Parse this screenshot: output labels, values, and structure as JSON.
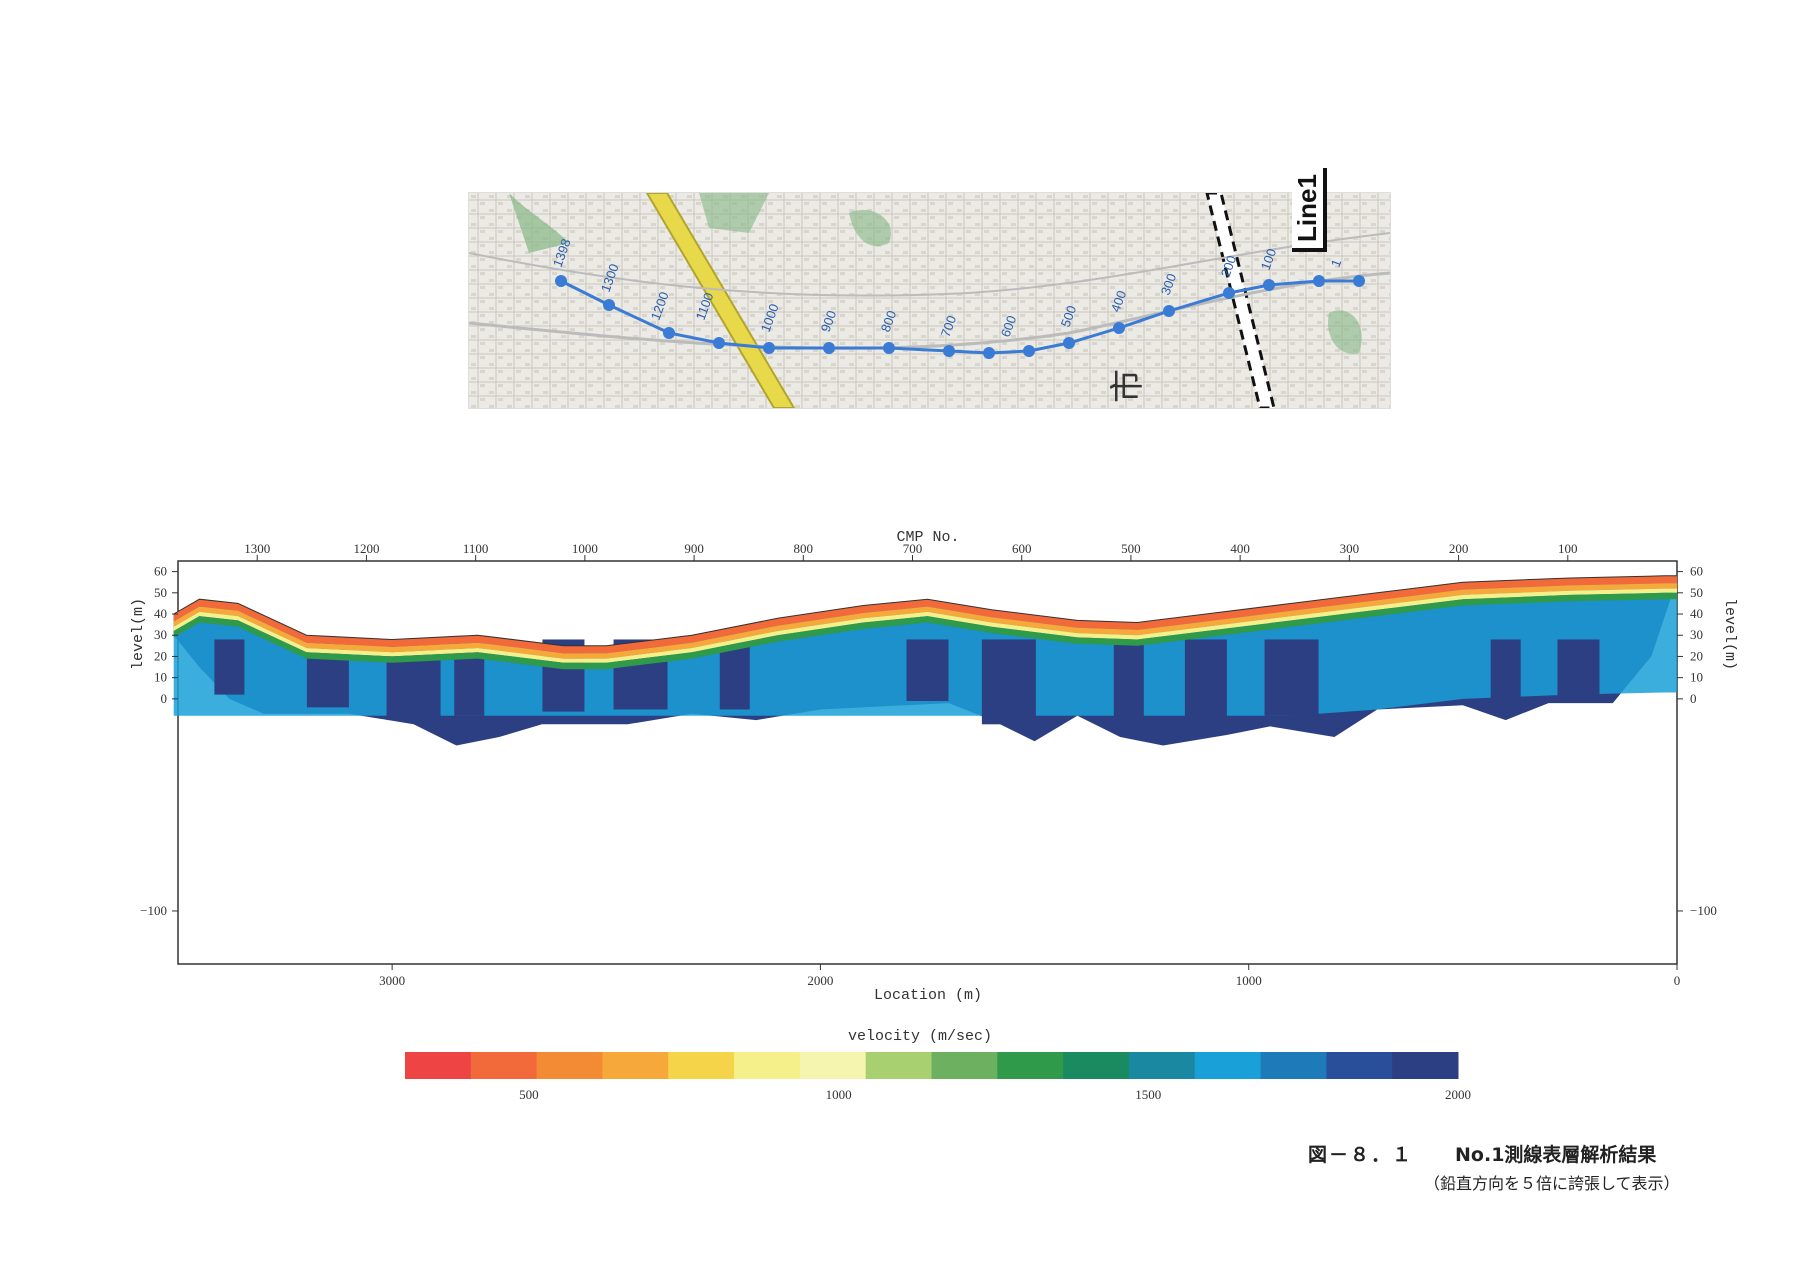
{
  "map": {
    "line_label": "Line1",
    "station_labels": [
      "1398",
      "1300",
      "1200",
      "1100",
      "1000",
      "900",
      "800",
      "700",
      "600",
      "500",
      "400",
      "300",
      "200",
      "100",
      "1"
    ],
    "line_color": "#3a7bd5",
    "map_text": [
      "市"
    ]
  },
  "section": {
    "top_axis_title": "CMP No.",
    "top_ticks": [
      "1300",
      "1200",
      "1100",
      "1000",
      "900",
      "800",
      "700",
      "600",
      "500",
      "400",
      "300",
      "200",
      "100"
    ],
    "bottom_axis_title": "Location (m)",
    "bottom_ticks": [
      "3000",
      "2000",
      "1000",
      "0"
    ],
    "left_axis_title": "level(m)",
    "right_axis_title": "level(m)",
    "y_ticks": [
      "60",
      "50",
      "40",
      "30",
      "20",
      "10",
      "0",
      "−100"
    ],
    "vertical_exaggeration": 5,
    "x_range_m": [
      3500,
      0
    ],
    "y_range_m": [
      -125,
      65
    ]
  },
  "colorbar": {
    "title": "velocity (m/sec)",
    "tick_labels": [
      "500",
      "1000",
      "1500",
      "2000"
    ],
    "range": [
      300,
      2000
    ],
    "colors": [
      "#ee4444",
      "#f26a3a",
      "#f38b35",
      "#f6a83a",
      "#f5d44a",
      "#f5f08a",
      "#f5f5b0",
      "#a8d070",
      "#6cb060",
      "#2e9a4a",
      "#1a8a60",
      "#1a88a0",
      "#1aa0d8",
      "#1e7ab8",
      "#2a4f9a",
      "#2c3f82"
    ]
  },
  "caption": {
    "figure_number": "図－８．１",
    "title": "No.1測線表層解析結果",
    "subtitle": "（鉛直方向を５倍に誇張して表示）"
  }
}
